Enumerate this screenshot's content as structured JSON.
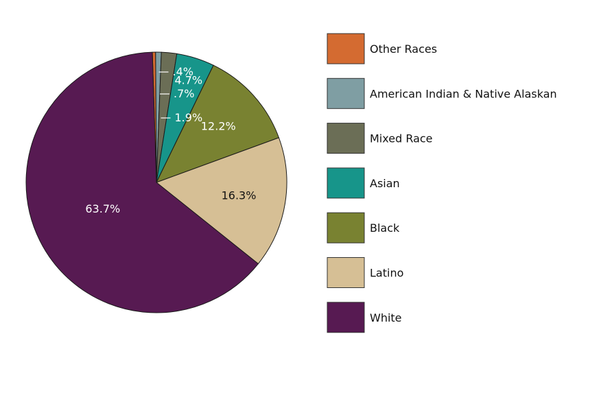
{
  "chart_data": {
    "type": "pie",
    "slices": [
      {
        "label": "Other Races",
        "value": 0.4,
        "display": ".4%",
        "color": "#d46b31"
      },
      {
        "label": "American Indian & Native Alaskan",
        "value": 0.7,
        "display": ".7%",
        "color": "#7f9ea3"
      },
      {
        "label": "Mixed Race",
        "value": 1.9,
        "display": "1.9%",
        "color": "#6b6e56"
      },
      {
        "label": "Asian",
        "value": 4.7,
        "display": "4.7%",
        "color": "#17958a"
      },
      {
        "label": "Black",
        "value": 12.2,
        "display": "12.2%",
        "color": "#798231"
      },
      {
        "label": "Latino",
        "value": 16.3,
        "display": "16.3%",
        "color": "#d6bf95"
      },
      {
        "label": "White",
        "value": 63.7,
        "display": "63.7%",
        "color": "#571a52"
      }
    ],
    "legend": {
      "position": "right"
    }
  }
}
